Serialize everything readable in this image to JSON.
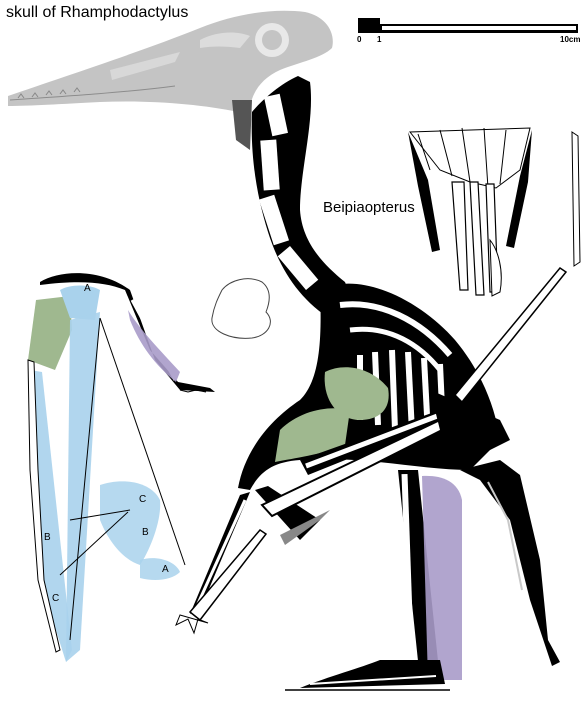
{
  "header": {
    "title": "skull of Rhamphodactylus"
  },
  "specimen": {
    "name": "Beipiaopterus"
  },
  "scale_bar": {
    "tick_start": "0",
    "tick_one": "1",
    "tick_end": "10cm"
  },
  "wing_labels": {
    "a_top": "A",
    "a_bottom": "A",
    "b_left": "B",
    "b_right": "B",
    "c_left": "C",
    "c_right": "C"
  },
  "colors": {
    "bone": "#000000",
    "skull_gray": "#bdbdbd",
    "membrane_blue": "#a9d2ec",
    "muscle_green": "#9fb88f",
    "muscle_purple": "#a99bc9"
  }
}
